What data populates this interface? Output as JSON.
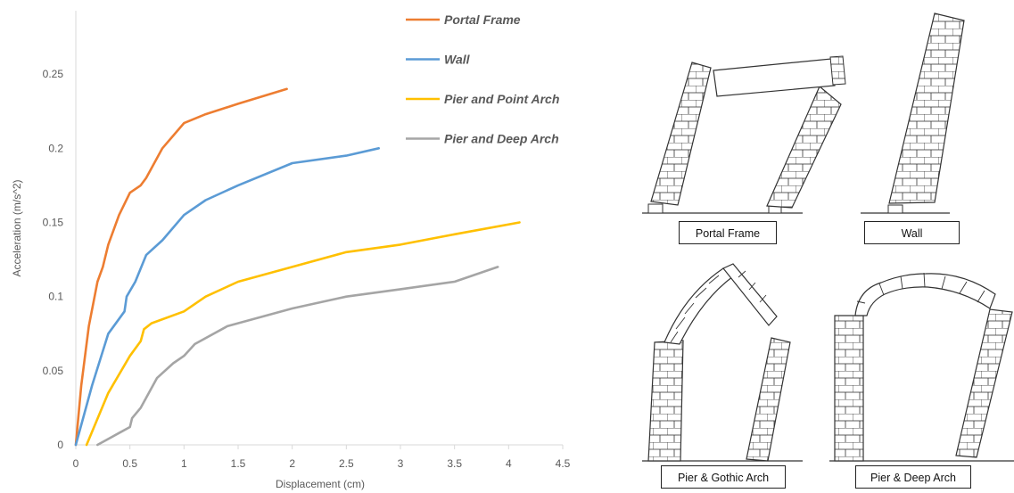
{
  "chart_data": {
    "type": "line",
    "title": "",
    "xlabel": "Displacement (cm)",
    "ylabel": "Acceleration (m/s^2)",
    "xlim": [
      0,
      4.5
    ],
    "ylim": [
      0,
      0.3
    ],
    "x_ticks": [
      "0",
      "0.5",
      "1",
      "1.5",
      "2",
      "2.5",
      "3",
      "3.5",
      "4",
      "4.5"
    ],
    "y_ticks": [
      "0",
      "0.05",
      "0.1",
      "0.15",
      "0.2",
      "0.25"
    ],
    "grid": false,
    "legend": "right",
    "series": [
      {
        "name": "Portal Frame",
        "color": "#ED7D31",
        "points": [
          [
            0,
            0
          ],
          [
            0.05,
            0.04
          ],
          [
            0.12,
            0.08
          ],
          [
            0.2,
            0.11
          ],
          [
            0.25,
            0.12
          ],
          [
            0.3,
            0.135
          ],
          [
            0.4,
            0.155
          ],
          [
            0.5,
            0.17
          ],
          [
            0.6,
            0.175
          ],
          [
            0.65,
            0.18
          ],
          [
            0.8,
            0.2
          ],
          [
            1.0,
            0.217
          ],
          [
            1.2,
            0.223
          ],
          [
            1.5,
            0.23
          ],
          [
            1.95,
            0.24
          ]
        ]
      },
      {
        "name": "Wall",
        "color": "#5B9BD5",
        "points": [
          [
            0,
            0
          ],
          [
            0.15,
            0.04
          ],
          [
            0.3,
            0.075
          ],
          [
            0.45,
            0.09
          ],
          [
            0.47,
            0.1
          ],
          [
            0.55,
            0.11
          ],
          [
            0.65,
            0.128
          ],
          [
            0.8,
            0.138
          ],
          [
            1.0,
            0.155
          ],
          [
            1.2,
            0.165
          ],
          [
            1.5,
            0.175
          ],
          [
            2.0,
            0.19
          ],
          [
            2.5,
            0.195
          ],
          [
            2.8,
            0.2
          ]
        ]
      },
      {
        "name": "Pier and Point Arch",
        "color": "#FFC000",
        "points": [
          [
            0.1,
            0
          ],
          [
            0.3,
            0.035
          ],
          [
            0.5,
            0.06
          ],
          [
            0.6,
            0.07
          ],
          [
            0.63,
            0.078
          ],
          [
            0.7,
            0.082
          ],
          [
            1.0,
            0.09
          ],
          [
            1.2,
            0.1
          ],
          [
            1.5,
            0.11
          ],
          [
            2.0,
            0.12
          ],
          [
            2.5,
            0.13
          ],
          [
            3.0,
            0.135
          ],
          [
            3.5,
            0.142
          ],
          [
            4.1,
            0.15
          ]
        ]
      },
      {
        "name": "Pier and Deep Arch",
        "color": "#A5A5A5",
        "points": [
          [
            0.2,
            0
          ],
          [
            0.4,
            0.008
          ],
          [
            0.5,
            0.012
          ],
          [
            0.52,
            0.018
          ],
          [
            0.6,
            0.025
          ],
          [
            0.75,
            0.045
          ],
          [
            0.9,
            0.055
          ],
          [
            1.0,
            0.06
          ],
          [
            1.1,
            0.068
          ],
          [
            1.4,
            0.08
          ],
          [
            1.8,
            0.088
          ],
          [
            2.0,
            0.092
          ],
          [
            2.5,
            0.1
          ],
          [
            3.0,
            0.105
          ],
          [
            3.5,
            0.11
          ],
          [
            3.9,
            0.12
          ]
        ]
      }
    ]
  },
  "diagrams": {
    "captions": [
      "Portal Frame",
      "Wall",
      "Pier & Gothic Arch",
      "Pier & Deep Arch"
    ]
  }
}
